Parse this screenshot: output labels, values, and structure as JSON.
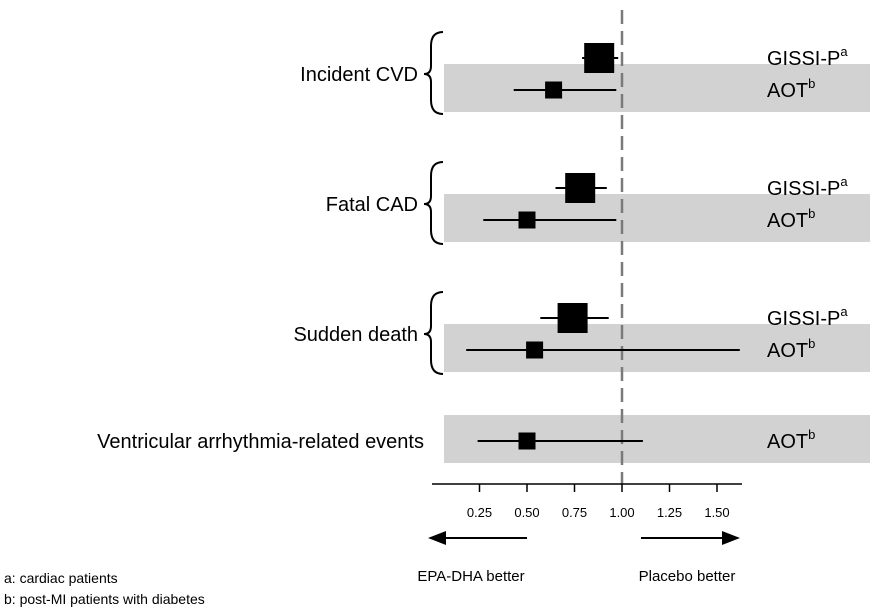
{
  "chart_data": {
    "type": "forest",
    "xaxis": {
      "ticks": [
        0.25,
        0.5,
        0.75,
        1.0,
        1.25,
        1.5
      ],
      "tick_labels": [
        "0.25",
        "0.50",
        "0.75",
        "1.00",
        "1.25",
        "1.50"
      ],
      "range": [
        0.0,
        1.8
      ],
      "reference_line": 1.0
    },
    "direction_labels": {
      "left": "EPA-DHA better",
      "right": "Placebo better"
    },
    "groups": [
      {
        "category": "Incident CVD",
        "rows": [
          {
            "study": "GISSI-P",
            "sup": "a",
            "estimate": 0.88,
            "lower": 0.79,
            "upper": 0.98,
            "marker": "large",
            "shaded": false
          },
          {
            "study": "AOT",
            "sup": "b",
            "estimate": 0.64,
            "lower": 0.43,
            "upper": 0.97,
            "marker": "small",
            "shaded": true
          }
        ]
      },
      {
        "category": "Fatal CAD",
        "rows": [
          {
            "study": "GISSI-P",
            "sup": "a",
            "estimate": 0.78,
            "lower": 0.65,
            "upper": 0.92,
            "marker": "large",
            "shaded": false
          },
          {
            "study": "AOT",
            "sup": "b",
            "estimate": 0.5,
            "lower": 0.27,
            "upper": 0.97,
            "marker": "small",
            "shaded": true
          }
        ]
      },
      {
        "category": "Sudden death",
        "rows": [
          {
            "study": "GISSI-P",
            "sup": "a",
            "estimate": 0.74,
            "lower": 0.57,
            "upper": 0.93,
            "marker": "large",
            "shaded": false
          },
          {
            "study": "AOT",
            "sup": "b",
            "estimate": 0.54,
            "lower": 0.18,
            "upper": 1.62,
            "marker": "small",
            "shaded": true
          }
        ]
      },
      {
        "category": "Ventricular arrhythmia-related events",
        "rows": [
          {
            "study": "AOT",
            "sup": "b",
            "estimate": 0.5,
            "lower": 0.24,
            "upper": 1.11,
            "marker": "small",
            "shaded": true
          }
        ]
      }
    ],
    "colors": {
      "shade": "#d2d2d2",
      "marker": "#000000",
      "reference_line": "#7a7a7a"
    }
  },
  "footnotes": [
    "a: cardiac patients",
    "b: post-MI patients with diabetes"
  ]
}
